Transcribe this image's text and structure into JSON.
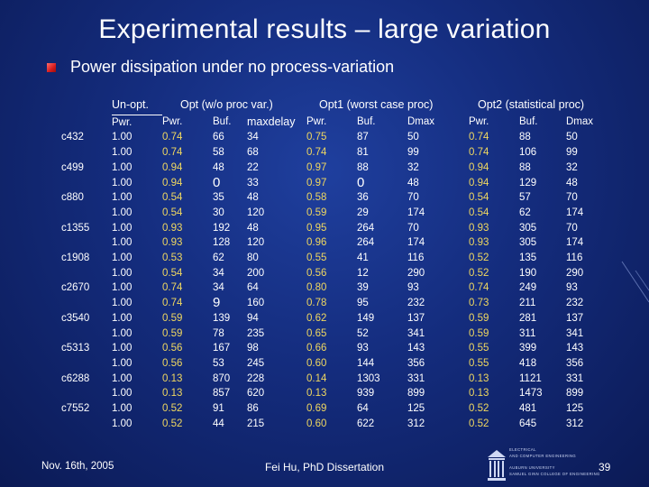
{
  "title": "Experimental results – large variation",
  "bullet": "Power dissipation under no process-variation",
  "groups": {
    "unopt": "Un-opt.",
    "opt": "Opt (w/o proc var.)",
    "opt1": "Opt1 (worst case proc)",
    "opt2": "Opt2 (statistical proc)"
  },
  "subheaders": [
    "Pwr.",
    "Pwr.",
    "Buf.",
    "maxdelay",
    "Pwr.",
    "Buf.",
    "Dmax",
    "Pwr.",
    "Buf.",
    "Dmax"
  ],
  "circuits": [
    "c432",
    "c499",
    "c880",
    "c1355",
    "c1908",
    "c2670",
    "c3540",
    "c5313",
    "c6288",
    "c7552"
  ],
  "rows": [
    [
      "1.00",
      "0.74",
      "66",
      "34",
      "0.75",
      "87",
      "50",
      "0.74",
      "88",
      "50"
    ],
    [
      "1.00",
      "0.74",
      "58",
      "68",
      "0.74",
      "81",
      "99",
      "0.74",
      "106",
      "99"
    ],
    [
      "1.00",
      "0.94",
      "48",
      "22",
      "0.97",
      "88",
      "32",
      "0.94",
      "88",
      "32"
    ],
    [
      "1.00",
      "0.94",
      "0",
      "33",
      "0.97",
      "0",
      "48",
      "0.94",
      "129",
      "48"
    ],
    [
      "1.00",
      "0.54",
      "35",
      "48",
      "0.58",
      "36",
      "70",
      "0.54",
      "57",
      "70"
    ],
    [
      "1.00",
      "0.54",
      "30",
      "120",
      "0.59",
      "29",
      "174",
      "0.54",
      "62",
      "174"
    ],
    [
      "1.00",
      "0.93",
      "192",
      "48",
      "0.95",
      "264",
      "70",
      "0.93",
      "305",
      "70"
    ],
    [
      "1.00",
      "0.93",
      "128",
      "120",
      "0.96",
      "264",
      "174",
      "0.93",
      "305",
      "174"
    ],
    [
      "1.00",
      "0.53",
      "62",
      "80",
      "0.55",
      "41",
      "116",
      "0.52",
      "135",
      "116"
    ],
    [
      "1.00",
      "0.54",
      "34",
      "200",
      "0.56",
      "12",
      "290",
      "0.52",
      "190",
      "290"
    ],
    [
      "1.00",
      "0.74",
      "34",
      "64",
      "0.80",
      "39",
      "93",
      "0.74",
      "249",
      "93"
    ],
    [
      "1.00",
      "0.74",
      "9",
      "160",
      "0.78",
      "95",
      "232",
      "0.73",
      "211",
      "232"
    ],
    [
      "1.00",
      "0.59",
      "139",
      "94",
      "0.62",
      "149",
      "137",
      "0.59",
      "281",
      "137"
    ],
    [
      "1.00",
      "0.59",
      "78",
      "235",
      "0.65",
      "52",
      "341",
      "0.59",
      "311",
      "341"
    ],
    [
      "1.00",
      "0.56",
      "167",
      "98",
      "0.66",
      "93",
      "143",
      "0.55",
      "399",
      "143"
    ],
    [
      "1.00",
      "0.56",
      "53",
      "245",
      "0.60",
      "144",
      "356",
      "0.55",
      "418",
      "356"
    ],
    [
      "1.00",
      "0.13",
      "870",
      "228",
      "0.14",
      "1303",
      "331",
      "0.13",
      "1121",
      "331"
    ],
    [
      "1.00",
      "0.13",
      "857",
      "620",
      "0.13",
      "939",
      "899",
      "0.13",
      "1473",
      "899"
    ],
    [
      "1.00",
      "0.52",
      "91",
      "86",
      "0.69",
      "64",
      "125",
      "0.52",
      "481",
      "125"
    ],
    [
      "1.00",
      "0.52",
      "44",
      "215",
      "0.60",
      "622",
      "312",
      "0.52",
      "645",
      "312"
    ]
  ],
  "footer": {
    "date": "Nov. 16th, 2005",
    "center": "Fei Hu, PhD Dissertation",
    "page": "39"
  },
  "logo": {
    "line1": "ELECTRICAL",
    "line2": "AND COMPUTER ENGINEERING",
    "line3": "AUBURN UNIVERSITY",
    "line4": "SAMUEL GINN COLLEGE OF ENGINEERING"
  },
  "colors": {
    "background": "#142c7d",
    "highlight_value": "#f0d860",
    "bullet": "#d41c1c"
  }
}
